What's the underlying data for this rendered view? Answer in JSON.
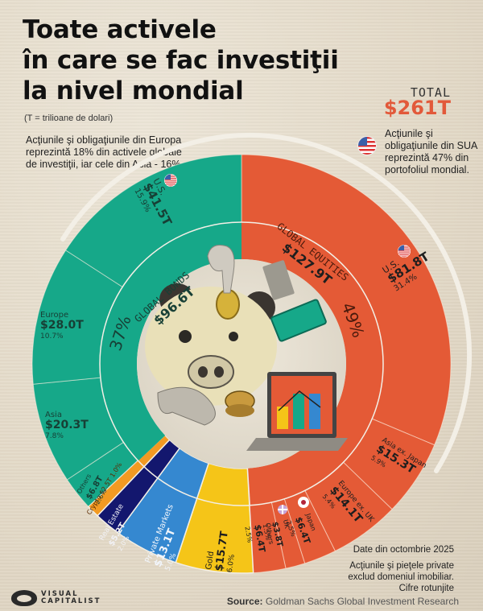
{
  "header": {
    "title_lines": [
      "Toate activele",
      "în care se fac investiţii",
      "la nivel mondial"
    ],
    "subtitle": "(T = trilioane de dolari)",
    "total_label": "TOTAL",
    "total_value": "$261T"
  },
  "notes": {
    "europe_asia": "Acţiunile şi obligaţiunile din Europa reprezintă 18% din activele globale de investiţii, iar cele din Asia - 16%.",
    "us": "Acţiunile şi obligaţiunile din SUA reprezintă 47% din portofoliul mondial."
  },
  "footer": {
    "date_note": "Date din octombrie 2025",
    "private_note_1": "Acţiunile şi pieţele private",
    "private_note_2": "exclud domeniul imobiliar.",
    "rounding_note": "Cifre rotunjite",
    "source_label": "Source:",
    "source_text": "Goldman Sachs Global Investment Research",
    "logo_line1": "VISUAL",
    "logo_line2": "CAPITALIST"
  },
  "colors": {
    "equities": "#e45a36",
    "bonds": "#16a889",
    "gold": "#f5c518",
    "private_markets": "#3588d0",
    "real_estate": "#13176e",
    "crypto": "#f29a22",
    "accent_red": "#e2593a"
  },
  "chart_data": {
    "type": "pie",
    "title": "Toate activele în care se fac investiţii la nivel mondial",
    "total": "$261T",
    "unit": "trillion USD",
    "inner_ring": [
      {
        "name": "Global Equities",
        "value": 127.9,
        "label": "$127.9T",
        "pct": 49
      },
      {
        "name": "Gold",
        "value": 15.7,
        "label": "$15.7T",
        "pct": 6.0
      },
      {
        "name": "Private Markets",
        "value": 13.1,
        "label": "$13.1T",
        "pct": 5.0
      },
      {
        "name": "Real Estate",
        "value": 5.2,
        "label": "$5.2T",
        "pct": 2.0
      },
      {
        "name": "Crypto",
        "value": 2.5,
        "label": "$2.5T",
        "pct": 1.0
      },
      {
        "name": "Global Bonds",
        "value": 96.6,
        "label": "$96.6T",
        "pct": 37
      }
    ],
    "outer_ring": [
      {
        "group": "Global Equities",
        "name": "U.S.",
        "value": 81.8,
        "label": "$81.8T",
        "pct": 31.4
      },
      {
        "group": "Global Equities",
        "name": "Asia ex. Japan",
        "value": 15.3,
        "label": "$15.3T",
        "pct": 5.9
      },
      {
        "group": "Global Equities",
        "name": "Europe ex. UK",
        "value": 14.1,
        "label": "$14.1T",
        "pct": 5.4
      },
      {
        "group": "Global Equities",
        "name": "Japan",
        "value": 6.4,
        "label": "$6.4T",
        "pct": 2.5
      },
      {
        "group": "Global Equities",
        "name": "UK",
        "value": 3.8,
        "label": "$3.8T",
        "pct": 1.5
      },
      {
        "group": "Global Equities",
        "name": "Others",
        "value": 6.4,
        "label": "$6.4T",
        "pct": 2.5
      },
      {
        "group": "Gold",
        "name": "Gold",
        "value": 15.7,
        "label": "$15.7T",
        "pct": 6.0
      },
      {
        "group": "Private Markets",
        "name": "Private Markets",
        "value": 13.1,
        "label": "$13.1T",
        "pct": 5.0
      },
      {
        "group": "Real Estate",
        "name": "Real Estate",
        "value": 5.2,
        "label": "$5.2T",
        "pct": 2.0
      },
      {
        "group": "Crypto",
        "name": "Crypto",
        "value": 2.5,
        "label": "$2.5T",
        "pct": 1.0
      },
      {
        "group": "Global Bonds",
        "name": "Others",
        "value": 6.8,
        "label": "$6.8T",
        "pct": 2.6
      },
      {
        "group": "Global Bonds",
        "name": "Asia",
        "value": 20.3,
        "label": "$20.3T",
        "pct": 7.8
      },
      {
        "group": "Global Bonds",
        "name": "Europe",
        "value": 28.0,
        "label": "$28.0T",
        "pct": 10.7
      },
      {
        "group": "Global Bonds",
        "name": "U.S.",
        "value": 41.5,
        "label": "$41.5T",
        "pct": 15.9
      }
    ]
  },
  "labels": {
    "equities_title": "GLOBAL EQUITIES",
    "equities_value": "$127.9T",
    "equities_pct": "49%",
    "bonds_title": "GLOBAL BONDS",
    "bonds_value": "$96.6T",
    "bonds_pct": "37%",
    "eq_us_name": "U.S.",
    "eq_us_value": "$81.8T",
    "eq_us_pct": "31.4%",
    "eq_asia_name": "Asia ex. Japan",
    "eq_asia_value": "$15.3T",
    "eq_asia_pct": "5.9%",
    "eq_eu_name": "Europe ex. UK",
    "eq_eu_value": "$14.1T",
    "eq_eu_pct": "5.4%",
    "eq_jp_name": "Japan",
    "eq_jp_value": "$6.4T",
    "eq_jp_pct": "2.5%",
    "eq_uk_name": "UK",
    "eq_uk_value": "$3.8T",
    "eq_uk_pct": "1.5%",
    "eq_oth_name": "Others",
    "eq_oth_value": "$6.4T",
    "eq_oth_pct": "2.5%",
    "gold_name": "Gold",
    "gold_value": "$15.7T",
    "gold_pct": "6.0%",
    "pm_name": "Private Markets",
    "pm_value": "$13.1T",
    "pm_pct": "5.0%",
    "re_name": "Real Estate",
    "re_value": "$5.2T",
    "re_pct": "2.0%",
    "crypto_name": "Crypto",
    "crypto_value": "$2.5T",
    "crypto_pct": "1.0%",
    "bd_oth_name": "Others",
    "bd_oth_value": "$6.8T",
    "bd_oth_pct": "2.6%",
    "bd_asia_name": "Asia",
    "bd_asia_value": "$20.3T",
    "bd_asia_pct": "7.8%",
    "bd_eu_name": "Europe",
    "bd_eu_value": "$28.0T",
    "bd_eu_pct": "10.7%",
    "bd_us_name": "U.S.",
    "bd_us_value": "$41.5T",
    "bd_us_pct": "15.9%"
  }
}
